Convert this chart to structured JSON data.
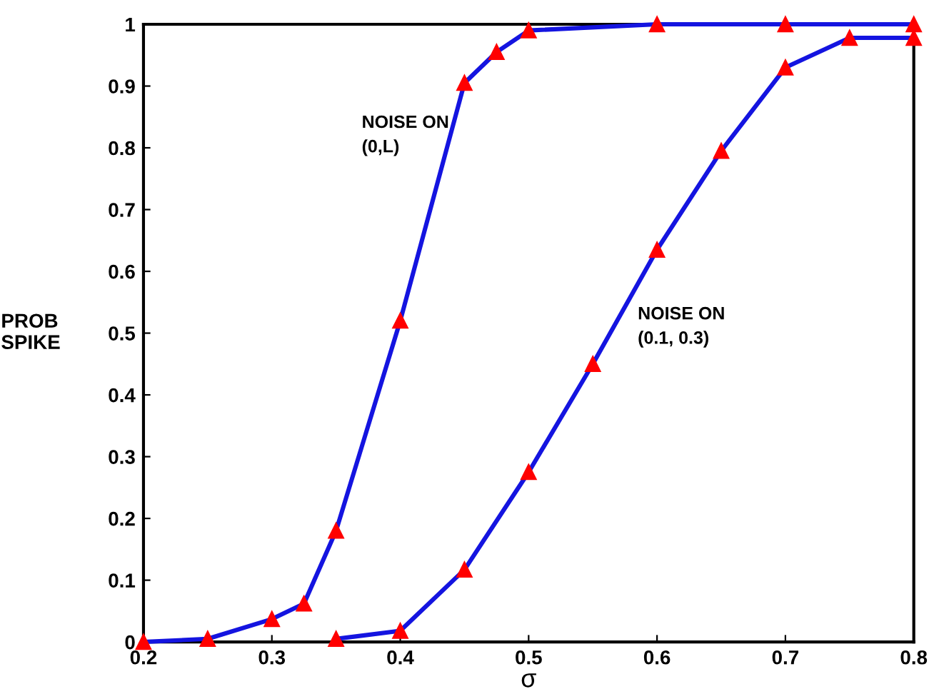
{
  "chart_data": {
    "type": "line",
    "xlabel": "σ",
    "ylabel": "PROB\nSPIKE",
    "xlim": [
      0.2,
      0.8
    ],
    "xticks": [
      0.2,
      0.3,
      0.4,
      0.5,
      0.6,
      0.7,
      0.8
    ],
    "ylim": [
      0,
      1
    ],
    "yticks": [
      0,
      0.1,
      0.2,
      0.3,
      0.4,
      0.5,
      0.6,
      0.7,
      0.8,
      0.9,
      1
    ],
    "grid": false,
    "legend": false,
    "marker": "triangle",
    "line_style": "solid",
    "annotations": [
      "NOISE ON\n(0,L)",
      "NOISE ON\n(0.1, 0.3)"
    ],
    "series": [
      {
        "color": "#1414e0",
        "x": [
          0.2,
          0.25,
          0.3,
          0.325,
          0.35,
          0.4,
          0.45,
          0.475,
          0.5,
          0.6,
          0.7,
          0.8
        ],
        "values": [
          0,
          0.005,
          0.037,
          0.062,
          0.18,
          0.52,
          0.905,
          0.955,
          0.99,
          1.0,
          1.0,
          1.0
        ]
      },
      {
        "color": "#1414e0",
        "x": [
          0.35,
          0.4,
          0.45,
          0.5,
          0.55,
          0.6,
          0.65,
          0.7,
          0.75,
          0.8
        ],
        "values": [
          0.005,
          0.018,
          0.117,
          0.275,
          0.45,
          0.635,
          0.795,
          0.93,
          0.978,
          0.978
        ]
      }
    ]
  }
}
